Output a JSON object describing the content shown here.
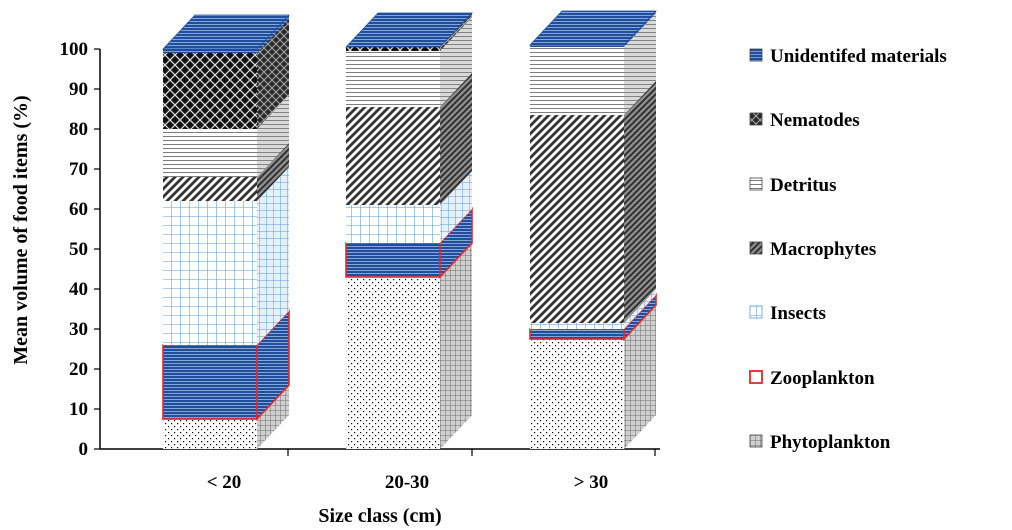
{
  "chart_data": {
    "type": "bar",
    "stacked": true,
    "three_d": true,
    "title": "",
    "xlabel": "Size class (cm)",
    "ylabel": "Mean volume of food items (%)",
    "ylim": [
      0,
      100
    ],
    "yticks": [
      0,
      10,
      20,
      30,
      40,
      50,
      60,
      70,
      80,
      90,
      100
    ],
    "categories": [
      "< 20",
      "20-30",
      "> 30"
    ],
    "legend_position": "right",
    "series": [
      {
        "name": "Phytoplankton",
        "values": [
          7.5,
          43,
          27.5
        ]
      },
      {
        "name": "Zooplankton",
        "values": [
          18.5,
          8.5,
          2.5
        ]
      },
      {
        "name": "Insects",
        "values": [
          36,
          9.5,
          1.5
        ]
      },
      {
        "name": "Macrophytes",
        "values": [
          6,
          24.5,
          52
        ]
      },
      {
        "name": "Detritus",
        "values": [
          12,
          14,
          17
        ]
      },
      {
        "name": "Nematodes",
        "values": [
          19,
          1,
          0
        ]
      },
      {
        "name": "Unidentifed materials",
        "values": [
          1,
          0,
          0.5
        ]
      }
    ],
    "colors": {
      "Phytoplankton": "#000000",
      "Zooplankton": "#e8262a",
      "Insects": "#5b9bd5",
      "Macrophytes": "#000000",
      "Detritus": "#000000",
      "Nematodes": "#000000",
      "Unidentifed materials": "#1f4e9c"
    }
  }
}
